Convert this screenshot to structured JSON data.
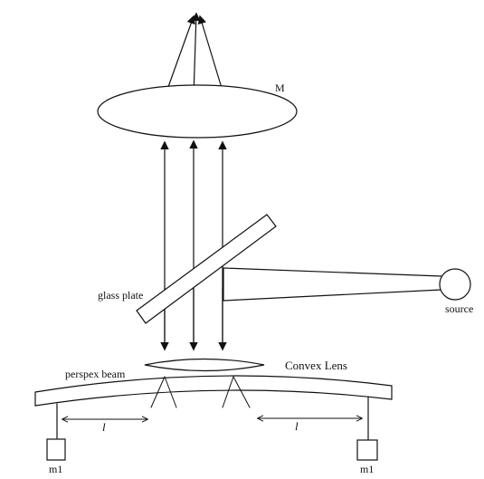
{
  "labels": {
    "mirror": "M",
    "glass_plate": "glass plate",
    "source": "source",
    "perspex_beam": "perspex beam",
    "convex_lens": "Convex Lens",
    "length_left": "l",
    "length_right": "l",
    "mass_left": "m1",
    "mass_right": "m1"
  },
  "colors": {
    "line": "#111111",
    "background": "#ffffff"
  }
}
